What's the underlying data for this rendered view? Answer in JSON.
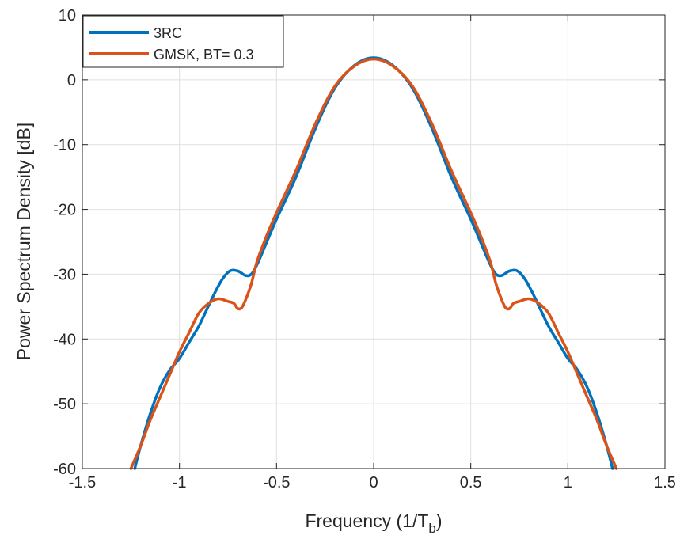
{
  "chart_data": {
    "type": "line",
    "title": "",
    "xlabel": "Frequency (1/T",
    "xlabel_subscript": "b",
    "xlabel_suffix": ")",
    "ylabel": "Power Spectrum Density [dB]",
    "xlim": [
      -1.5,
      1.5
    ],
    "ylim": [
      -60,
      10
    ],
    "xticks": [
      -1.5,
      -1,
      -0.5,
      0,
      0.5,
      1,
      1.5
    ],
    "yticks": [
      -60,
      -50,
      -40,
      -30,
      -20,
      -10,
      0,
      10
    ],
    "xtick_labels": [
      "-1.5",
      "-1",
      "-0.5",
      "0",
      "0.5",
      "1",
      "1.5"
    ],
    "ytick_labels": [
      "-60",
      "-50",
      "-40",
      "-30",
      "-20",
      "-10",
      "0",
      "10"
    ],
    "grid": true,
    "legend_position": "top-left",
    "series": [
      {
        "name": "3RC",
        "color": "#0072BD",
        "x": [
          0.0,
          0.1,
          0.2,
          0.3,
          0.4,
          0.5,
          0.55,
          0.6,
          0.63,
          0.66,
          0.7,
          0.74,
          0.78,
          0.82,
          0.86,
          0.9,
          0.95,
          1.0,
          1.05,
          1.1,
          1.15,
          1.2,
          1.23
        ],
        "y": [
          3.4,
          2.2,
          -1.3,
          -7.5,
          -15.0,
          -21.5,
          -25.0,
          -28.5,
          -30.0,
          -30.2,
          -29.5,
          -29.5,
          -30.8,
          -33.0,
          -35.5,
          -38.0,
          -40.5,
          -43.0,
          -44.8,
          -47.5,
          -51.5,
          -56.5,
          -60.0
        ]
      },
      {
        "name": "GMSK, BT= 0.3",
        "color": "#D95319",
        "x": [
          0.0,
          0.1,
          0.2,
          0.3,
          0.4,
          0.5,
          0.55,
          0.6,
          0.63,
          0.66,
          0.68,
          0.7,
          0.72,
          0.75,
          0.8,
          0.85,
          0.9,
          0.95,
          1.0,
          1.05,
          1.1,
          1.15,
          1.2,
          1.25
        ],
        "y": [
          3.2,
          2.1,
          -1.0,
          -6.8,
          -14.0,
          -20.5,
          -24.0,
          -28.0,
          -31.5,
          -34.0,
          -35.2,
          -35.3,
          -34.5,
          -34.2,
          -33.8,
          -34.5,
          -36.0,
          -39.0,
          -42.0,
          -45.5,
          -49.0,
          -52.5,
          -56.5,
          -60.0
        ]
      }
    ]
  }
}
